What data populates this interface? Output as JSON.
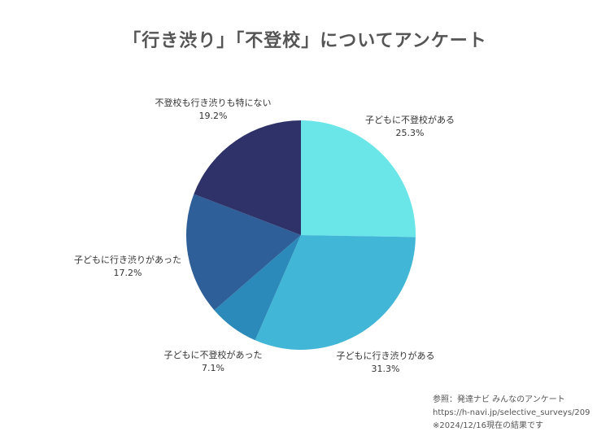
{
  "chart_data": {
    "type": "pie",
    "title": "「行き渋り」「不登校」についてアンケート",
    "categories": [
      "子どもに不登校がある",
      "子どもに行き渋りがある",
      "子どもに不登校があった",
      "子どもに行き渋りがあった",
      "不登校も行き渋りも特にない"
    ],
    "values": [
      25.3,
      31.3,
      7.1,
      17.2,
      19.2
    ],
    "value_labels": [
      "25.3%",
      "31.3%",
      "7.1%",
      "17.2%",
      "19.2%"
    ],
    "colors": [
      "#6ae5e8",
      "#42b6d6",
      "#2b8ab9",
      "#2e5f98",
      "#2e3268"
    ],
    "start_angle_deg": 0,
    "direction": "clockwise",
    "legend": "none"
  },
  "source": {
    "line1": "参照：発達ナビ みんなのアンケート",
    "line2": "https://h-navi.jp/selective_surveys/209",
    "line3": "※2024/12/16現在の結果です"
  }
}
